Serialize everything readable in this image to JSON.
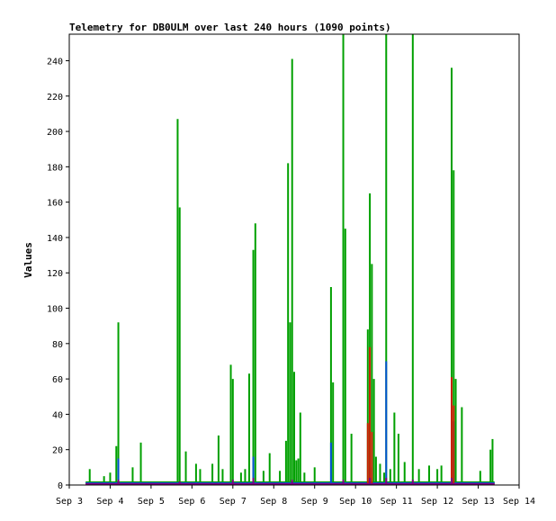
{
  "chart_data": {
    "type": "line",
    "title": "Telemetry for DB0ULM over last 240 hours (1090 points)",
    "ylabel": "Values",
    "xlabel": "",
    "grid": false,
    "legend": "none",
    "x_ticks": [
      "Sep 3",
      "Sep 4",
      "Sep 5",
      "Sep 6",
      "Sep 7",
      "Sep 8",
      "Sep 9",
      "Sep 10",
      "Sep 11",
      "Sep 12",
      "Sep 13",
      "Sep 14"
    ],
    "xlim": [
      3.0,
      14.0
    ],
    "y_ticks": [
      0,
      20,
      40,
      60,
      80,
      100,
      120,
      140,
      160,
      180,
      200,
      220,
      240
    ],
    "ylim": [
      0,
      255
    ],
    "baseline_end": 13.4,
    "series": [
      {
        "color": "#00a000",
        "baseline": 1.5,
        "spikes": [
          [
            3.5,
            9
          ],
          [
            3.85,
            5
          ],
          [
            4.0,
            7
          ],
          [
            4.15,
            22
          ],
          [
            4.2,
            92
          ],
          [
            4.55,
            10
          ],
          [
            4.75,
            24
          ],
          [
            5.65,
            207
          ],
          [
            5.7,
            157
          ],
          [
            5.85,
            19
          ],
          [
            6.1,
            12
          ],
          [
            6.2,
            9
          ],
          [
            6.5,
            12
          ],
          [
            6.65,
            28
          ],
          [
            6.75,
            9
          ],
          [
            6.95,
            68
          ],
          [
            7.0,
            60
          ],
          [
            7.2,
            7
          ],
          [
            7.3,
            9
          ],
          [
            7.4,
            63
          ],
          [
            7.5,
            133
          ],
          [
            7.55,
            148
          ],
          [
            7.75,
            8
          ],
          [
            7.9,
            18
          ],
          [
            8.15,
            8
          ],
          [
            8.3,
            25
          ],
          [
            8.35,
            182
          ],
          [
            8.4,
            92
          ],
          [
            8.45,
            241
          ],
          [
            8.5,
            64
          ],
          [
            8.55,
            14
          ],
          [
            8.6,
            15
          ],
          [
            8.65,
            41
          ],
          [
            8.75,
            7
          ],
          [
            9.0,
            10
          ],
          [
            9.4,
            112
          ],
          [
            9.45,
            58
          ],
          [
            9.7,
            255
          ],
          [
            9.75,
            145
          ],
          [
            9.9,
            29
          ],
          [
            10.3,
            88
          ],
          [
            10.35,
            165
          ],
          [
            10.4,
            125
          ],
          [
            10.45,
            60
          ],
          [
            10.5,
            16
          ],
          [
            10.6,
            12
          ],
          [
            10.7,
            7
          ],
          [
            10.75,
            255
          ],
          [
            10.85,
            9
          ],
          [
            10.95,
            41
          ],
          [
            11.05,
            29
          ],
          [
            11.2,
            13
          ],
          [
            11.4,
            255
          ],
          [
            11.55,
            9
          ],
          [
            11.8,
            11
          ],
          [
            12.0,
            9
          ],
          [
            12.1,
            11
          ],
          [
            12.35,
            236
          ],
          [
            12.4,
            178
          ],
          [
            12.45,
            60
          ],
          [
            12.6,
            44
          ],
          [
            13.05,
            8
          ],
          [
            13.3,
            20
          ],
          [
            13.35,
            26
          ]
        ]
      },
      {
        "color": "#0050d0",
        "baseline": 1,
        "spikes": [
          [
            4.2,
            15
          ],
          [
            7.5,
            16
          ],
          [
            9.4,
            24
          ],
          [
            10.35,
            10
          ],
          [
            10.75,
            70
          ],
          [
            12.4,
            36
          ]
        ]
      },
      {
        "color": "#c82000",
        "baseline": 0.5,
        "spikes": [
          [
            10.3,
            35
          ],
          [
            10.35,
            78
          ],
          [
            10.4,
            30
          ],
          [
            12.35,
            61
          ],
          [
            12.4,
            45
          ]
        ]
      },
      {
        "color": "#800080",
        "baseline": 0.5,
        "spikes": [
          [
            4.2,
            3
          ],
          [
            5.7,
            2
          ],
          [
            7.0,
            3
          ],
          [
            7.5,
            4
          ],
          [
            8.45,
            3
          ],
          [
            9.7,
            3
          ],
          [
            10.35,
            4
          ],
          [
            10.75,
            4
          ],
          [
            11.4,
            3
          ],
          [
            12.35,
            4
          ]
        ]
      }
    ]
  }
}
